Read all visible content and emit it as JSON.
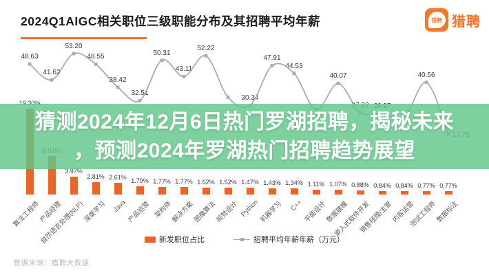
{
  "header": {
    "title": "2024Q1AIGC相关职位三级职能分布及其招聘平均年薪",
    "logo_badge_text": "猎聘",
    "logo_word": "猎聘"
  },
  "overlay": {
    "line1": "猜测2024年12月6日热门罗湖招聘，揭秘未来",
    "line2": "，预测2024年罗湖热门招聘趋势展望",
    "band_color": "rgba(97,198,138,0.82)",
    "text_color": "#ffffff"
  },
  "footer": {
    "source": "数据来源：猎聘大数据"
  },
  "colors": {
    "bar": "#e8652c",
    "line": "#ababab",
    "marker": "#ababab",
    "accent_orange": "#f2702a",
    "label_text": "#3a3a3a"
  },
  "chart_data": {
    "type": "bar",
    "note": "combo chart: bars = share of new job postings (%), smooth line = average offered annual salary (10k CNY); some line labels hidden behind overlay text",
    "categories": [
      "算法工程师",
      "产品经理",
      "自然语言处理(NLP)",
      "深度学习",
      "Java",
      "产品运营",
      "架构师",
      "解决方案",
      "图像算法",
      "视觉设计",
      "Python",
      "机器学习",
      "C++",
      "平面设计",
      "数据建模",
      "嵌入式软件开发",
      "销售经理/主管",
      "内容运营",
      "测试工程师",
      "数据标注"
    ],
    "series": [
      {
        "name": "新发职位占比",
        "type": "bar",
        "unit": "%",
        "values": [
          19.3,
          8.61,
          3.97,
          2.81,
          2.61,
          1.79,
          1.77,
          1.77,
          1.52,
          1.52,
          1.47,
          1.43,
          1.34,
          1.11,
          1.07,
          0.88,
          0.84,
          0.84,
          0.77,
          0.77
        ]
      },
      {
        "name": "招聘平均年薪年薪（万元）",
        "type": "line",
        "unit": "万元",
        "values": [
          48.63,
          41.62,
          53.2,
          48.55,
          38.42,
          32.51,
          50.31,
          43.11,
          52.22,
          34.0,
          30.34,
          47.91,
          44.53,
          28.5,
          40.07,
          27.22,
          26.97,
          25.0,
          40.56,
          17.75
        ],
        "labels_visible": [
          "48.63",
          "41.62",
          "53.20",
          "48.55",
          "38.42",
          "32.51",
          "50.31",
          "43.11",
          "52.22",
          null,
          "30.34",
          "47.91",
          "44.53",
          null,
          "40.07",
          "27.22",
          "26.97",
          null,
          "40.56",
          "17.75"
        ]
      }
    ],
    "legend_position": "bottom",
    "grid": false,
    "axes_visible": false
  }
}
